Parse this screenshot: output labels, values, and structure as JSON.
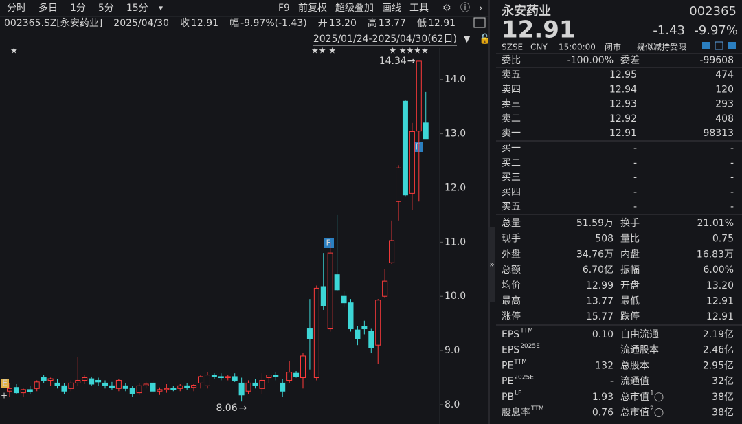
{
  "toolbar": {
    "periods": [
      "分时",
      "多日",
      "1分",
      "5分",
      "15分"
    ],
    "tools": [
      "F9",
      "前复权",
      "超级叠加",
      "画线",
      "工具"
    ]
  },
  "header": {
    "security": "002365.SZ[永安药业]",
    "date": "2025/04/30",
    "close_label": "收",
    "close": "12.91",
    "change_label": "幅",
    "change": "-9.97%(-1.43)",
    "open_label": "开",
    "open": "13.20",
    "high_label": "高",
    "high": "13.77",
    "low_label": "低",
    "low": "12.91"
  },
  "chart_data": {
    "type": "candlestick",
    "range": "2025/01/24-2025/04/30(62日)",
    "open": [
      8.25,
      8.32,
      8.22,
      8.28,
      8.3,
      8.5,
      8.45,
      8.4,
      8.35,
      8.3,
      8.4,
      8.45,
      8.48,
      8.45,
      8.4,
      8.35,
      8.3,
      8.35,
      8.3,
      8.22,
      8.35,
      8.4,
      8.25,
      8.28,
      8.3,
      8.3,
      8.35,
      8.32,
      8.4,
      8.35,
      8.55,
      8.52,
      8.5,
      8.52,
      8.4,
      8.25,
      8.4,
      8.3,
      8.5,
      8.55,
      8.4,
      8.45,
      8.58,
      8.5,
      9.4,
      8.5,
      10.18,
      9.4,
      10.4,
      10.0,
      9.88,
      9.38,
      9.45,
      9.35,
      9.1,
      10.0,
      10.62,
      11.75,
      13.6,
      11.9,
      13.05,
      13.2
    ],
    "high": [
      8.4,
      8.38,
      8.3,
      8.35,
      8.45,
      8.55,
      8.5,
      8.48,
      8.4,
      8.45,
      8.88,
      8.55,
      8.52,
      8.5,
      8.45,
      8.42,
      8.48,
      8.4,
      8.35,
      8.4,
      8.42,
      8.45,
      8.32,
      8.38,
      8.35,
      8.38,
      8.4,
      8.38,
      8.55,
      8.6,
      8.58,
      8.58,
      8.55,
      8.58,
      8.5,
      8.45,
      8.48,
      8.58,
      8.55,
      8.6,
      8.48,
      8.8,
      8.62,
      8.95,
      9.95,
      10.2,
      10.8,
      11.0,
      11.5,
      10.1,
      9.95,
      9.45,
      9.55,
      9.4,
      9.95,
      10.5,
      11.4,
      12.42,
      13.62,
      13.2,
      14.34,
      13.77
    ],
    "low": [
      8.15,
      8.2,
      8.15,
      8.2,
      8.25,
      8.4,
      8.35,
      8.3,
      8.2,
      8.25,
      8.35,
      8.38,
      8.35,
      8.35,
      8.3,
      8.28,
      8.25,
      8.25,
      8.15,
      8.18,
      8.3,
      8.22,
      8.18,
      8.22,
      8.25,
      8.25,
      8.28,
      8.25,
      8.3,
      8.3,
      8.48,
      8.45,
      8.45,
      8.42,
      8.06,
      8.2,
      8.3,
      8.2,
      8.4,
      8.45,
      8.15,
      8.4,
      8.5,
      8.3,
      8.65,
      8.45,
      9.75,
      9.35,
      10.1,
      9.8,
      9.35,
      9.1,
      9.3,
      8.95,
      8.75,
      9.98,
      10.6,
      11.4,
      11.85,
      11.6,
      11.75,
      12.91
    ],
    "close": [
      8.3,
      8.22,
      8.28,
      8.24,
      8.42,
      8.45,
      8.48,
      8.35,
      8.25,
      8.4,
      8.45,
      8.5,
      8.38,
      8.42,
      8.35,
      8.32,
      8.45,
      8.3,
      8.2,
      8.35,
      8.38,
      8.25,
      8.28,
      8.3,
      8.28,
      8.35,
      8.32,
      8.36,
      8.52,
      8.55,
      8.52,
      8.5,
      8.52,
      8.45,
      8.18,
      8.4,
      8.35,
      8.45,
      8.55,
      8.52,
      8.25,
      8.6,
      8.52,
      8.9,
      9.22,
      10.15,
      9.82,
      10.8,
      10.12,
      9.88,
      9.4,
      9.22,
      9.4,
      9.05,
      9.93,
      10.28,
      11.03,
      12.37,
      11.87,
      13.04,
      14.34,
      12.91
    ],
    "up_color": "#ff3b3b",
    "down_color": "#3dd6d6",
    "ylim": [
      7.86,
      14.58
    ],
    "yticks": [
      {
        "value": 8,
        "label": "8.0"
      },
      {
        "value": 9,
        "label": "9.0"
      },
      {
        "value": 10,
        "label": "10.0"
      },
      {
        "value": 11,
        "label": "11.0"
      },
      {
        "value": 12,
        "label": "12.0"
      },
      {
        "value": 13,
        "label": "13.0"
      },
      {
        "value": 14,
        "label": "14.0"
      }
    ],
    "max_label": 14.34,
    "min_label": 8.06
  },
  "quote": {
    "name": "永安药业",
    "code": "002365",
    "price": "12.91",
    "change": "-1.43",
    "change_pct": "-9.97%",
    "exchange": "SZSE",
    "currency": "CNY",
    "time": "15:00:00",
    "status": "闭市",
    "notice": "疑似减持受限"
  },
  "order_book": {
    "ratio_label": "委比",
    "ratio": "-100.00%",
    "diff_label": "委差",
    "diff": "-99608",
    "asks": [
      {
        "label": "卖五",
        "price": "12.95",
        "volume": "474"
      },
      {
        "label": "卖四",
        "price": "12.94",
        "volume": "120"
      },
      {
        "label": "卖三",
        "price": "12.93",
        "volume": "293"
      },
      {
        "label": "卖二",
        "price": "12.92",
        "volume": "408"
      },
      {
        "label": "卖一",
        "price": "12.91",
        "volume": "98313"
      }
    ],
    "bids": [
      {
        "label": "买一",
        "price": "-",
        "volume": "-"
      },
      {
        "label": "买二",
        "price": "-",
        "volume": "-"
      },
      {
        "label": "买三",
        "price": "-",
        "volume": "-"
      },
      {
        "label": "买四",
        "price": "-",
        "volume": "-"
      },
      {
        "label": "买五",
        "price": "-",
        "volume": "-"
      }
    ]
  },
  "stats": [
    {
      "label": "总量",
      "value": "51.59万",
      "tone": "flat",
      "label2": "换手",
      "value2": "21.01%",
      "tone2": "flat"
    },
    {
      "label": "现手",
      "value": "508",
      "tone": "flat",
      "label2": "量比",
      "value2": "0.75",
      "tone2": "flat"
    },
    {
      "label": "外盘",
      "value": "34.76万",
      "tone": "up",
      "label2": "内盘",
      "value2": "16.83万",
      "tone2": "down"
    },
    {
      "label": "总额",
      "value": "6.70亿",
      "tone": "flat",
      "label2": "振幅",
      "value2": "6.00%",
      "tone2": "flat"
    },
    {
      "label": "均价",
      "value": "12.99",
      "tone": "down",
      "label2": "开盘",
      "value2": "13.20",
      "tone2": "down"
    },
    {
      "label": "最高",
      "value": "13.77",
      "tone": "down",
      "label2": "最低",
      "value2": "12.91",
      "tone2": "down"
    },
    {
      "label": "涨停",
      "value": "15.77",
      "tone": "up",
      "label2": "跌停",
      "value2": "12.91",
      "tone2": "down"
    }
  ],
  "fundamentals": [
    {
      "label": "EPS",
      "sup": "TTM",
      "value": "0.10",
      "label2": "自由流通",
      "value2": "2.19亿"
    },
    {
      "label": "EPS",
      "sup": "2025E",
      "label2": "流通股本",
      "value2": "2.46亿"
    },
    {
      "label": "PE",
      "sup": "TTM",
      "value": "132",
      "label2": "总股本",
      "value2": "2.95亿"
    },
    {
      "label": "PE",
      "sup": "2025E",
      "value": "-",
      "label2": "流通值",
      "value2": "32亿"
    },
    {
      "label": "PB",
      "sup": "LF",
      "value": "1.93",
      "label2": "总市值",
      "sup2": "1",
      "value2": "38亿"
    },
    {
      "label": "股息率",
      "sup": "TTM",
      "value": "0.76",
      "label2": "总市值",
      "sup2": "2",
      "value2": "38亿"
    }
  ]
}
